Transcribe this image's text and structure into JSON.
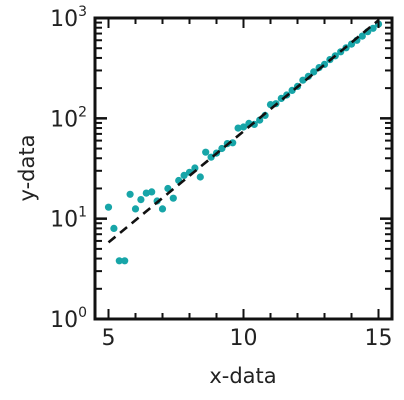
{
  "chart_data": {
    "type": "scatter",
    "xlabel": "x-data",
    "ylabel": "y-data",
    "xlim": [
      4.5,
      15.5
    ],
    "ylim": [
      1,
      1000
    ],
    "yscale": "log",
    "grid": false,
    "x_ticks": [
      {
        "value": 5,
        "label": "5"
      },
      {
        "value": 10,
        "label": "10"
      },
      {
        "value": 15,
        "label": "15"
      }
    ],
    "y_ticks": [
      {
        "value": 1,
        "base": "10",
        "exp": "0"
      },
      {
        "value": 10,
        "base": "10",
        "exp": "1"
      },
      {
        "value": 100,
        "base": "10",
        "exp": "2"
      },
      {
        "value": 1000,
        "base": "10",
        "exp": "3"
      }
    ],
    "series": [
      {
        "kind": "points",
        "color": "#17a5a8",
        "points": [
          [
            5.0,
            13
          ],
          [
            5.2,
            8
          ],
          [
            5.4,
            3.8
          ],
          [
            5.6,
            3.8
          ],
          [
            5.8,
            17.5
          ],
          [
            6.0,
            12.5
          ],
          [
            6.2,
            15.5
          ],
          [
            6.4,
            18
          ],
          [
            6.6,
            18.5
          ],
          [
            6.8,
            15
          ],
          [
            7.0,
            12.5
          ],
          [
            7.2,
            20
          ],
          [
            7.4,
            16
          ],
          [
            7.6,
            24
          ],
          [
            7.8,
            27
          ],
          [
            8.0,
            29
          ],
          [
            8.2,
            32
          ],
          [
            8.4,
            26
          ],
          [
            8.6,
            46
          ],
          [
            8.8,
            41
          ],
          [
            9.0,
            45
          ],
          [
            9.2,
            50
          ],
          [
            9.4,
            56
          ],
          [
            9.6,
            57
          ],
          [
            9.8,
            80
          ],
          [
            10.0,
            82
          ],
          [
            10.2,
            89
          ],
          [
            10.4,
            87
          ],
          [
            10.6,
            96
          ],
          [
            10.8,
            107
          ],
          [
            11.0,
            137
          ],
          [
            11.2,
            140
          ],
          [
            11.4,
            158
          ],
          [
            11.6,
            171
          ],
          [
            11.8,
            190
          ],
          [
            12.0,
            208
          ],
          [
            12.2,
            240
          ],
          [
            12.4,
            262
          ],
          [
            12.6,
            290
          ],
          [
            12.8,
            320
          ],
          [
            13.0,
            345
          ],
          [
            13.2,
            385
          ],
          [
            13.4,
            420
          ],
          [
            13.6,
            460
          ],
          [
            13.8,
            505
          ],
          [
            14.0,
            550
          ],
          [
            14.2,
            600
          ],
          [
            14.4,
            660
          ],
          [
            14.6,
            730
          ],
          [
            14.8,
            790
          ],
          [
            15.0,
            870
          ]
        ]
      },
      {
        "kind": "fit-line",
        "style": "dashed",
        "color": "#111111",
        "x": [
          5.0,
          15.0
        ],
        "y": [
          5.8,
          950
        ]
      }
    ]
  }
}
